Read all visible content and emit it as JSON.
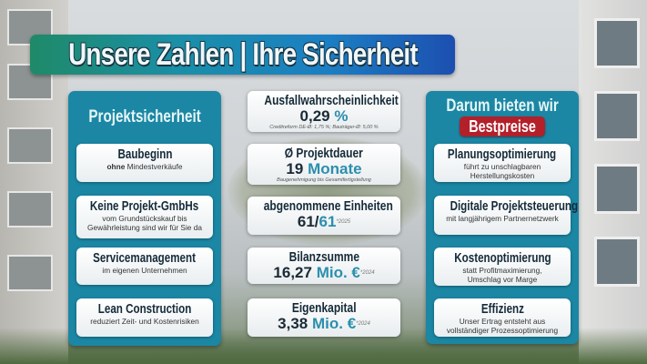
{
  "title": "Unsere Zahlen | Ihre Sicherheit",
  "left_panel": {
    "title": "Projektsicherheit",
    "items": [
      {
        "heading": "Baubeginn",
        "text_bold": "ohne",
        "text": "Mindestverkäufe"
      },
      {
        "heading": "Keine Projekt-GmbHs",
        "text": "vom Grundstückskauf bis",
        "text2": "Gewährleistung sind wir für Sie da"
      },
      {
        "heading": "Servicemanagement",
        "text": "im eigenen Unternehmen"
      },
      {
        "heading": "Lean Construction",
        "text": "reduziert Zeit- und Kostenrisiken"
      }
    ]
  },
  "middle": {
    "items": [
      {
        "heading": "Ausfallwahrscheinlichkeit",
        "value": "0,29",
        "unit": "%",
        "note": "Creditreform DE-Ø: 1,75 %; Bauträger-Ø: 5,00 %"
      },
      {
        "heading": "Ø Projektdauer",
        "value": "19",
        "unit": "Monate",
        "note": "Baugenehmigung bis Gesamtfertigstellung"
      },
      {
        "heading": "abgenommene Einheiten",
        "value": "61/",
        "unit": "61",
        "sup": "*2025"
      },
      {
        "heading": "Bilanzsumme",
        "value": "16,27",
        "unit": "Mio. €",
        "sup": "*2024"
      },
      {
        "heading": "Eigenkapital",
        "value": "3,38",
        "unit": "Mio. €",
        "sup": "*2024"
      }
    ]
  },
  "right_panel": {
    "title": "Darum bieten wir",
    "badge": "Bestpreise",
    "items": [
      {
        "heading": "Planungsoptimierung",
        "text": "führt zu unschlagbaren",
        "text2": "Herstellungskosten"
      },
      {
        "heading": "Digitale Projektsteuerung",
        "text": "mit langjährigem Partnernetzwerk"
      },
      {
        "heading": "Kostenoptimierung",
        "text": "statt Profitmaximierung,",
        "text2": "Umschlag vor Marge"
      },
      {
        "heading": "Effizienz",
        "text": "Unser Ertrag entsteht aus",
        "text2": "vollständiger Prozessoptimierung"
      }
    ]
  },
  "colors": {
    "panel": "#1b87a4",
    "accent": "#2b8fae",
    "badge": "#b3202a",
    "heading": "#142a38"
  }
}
